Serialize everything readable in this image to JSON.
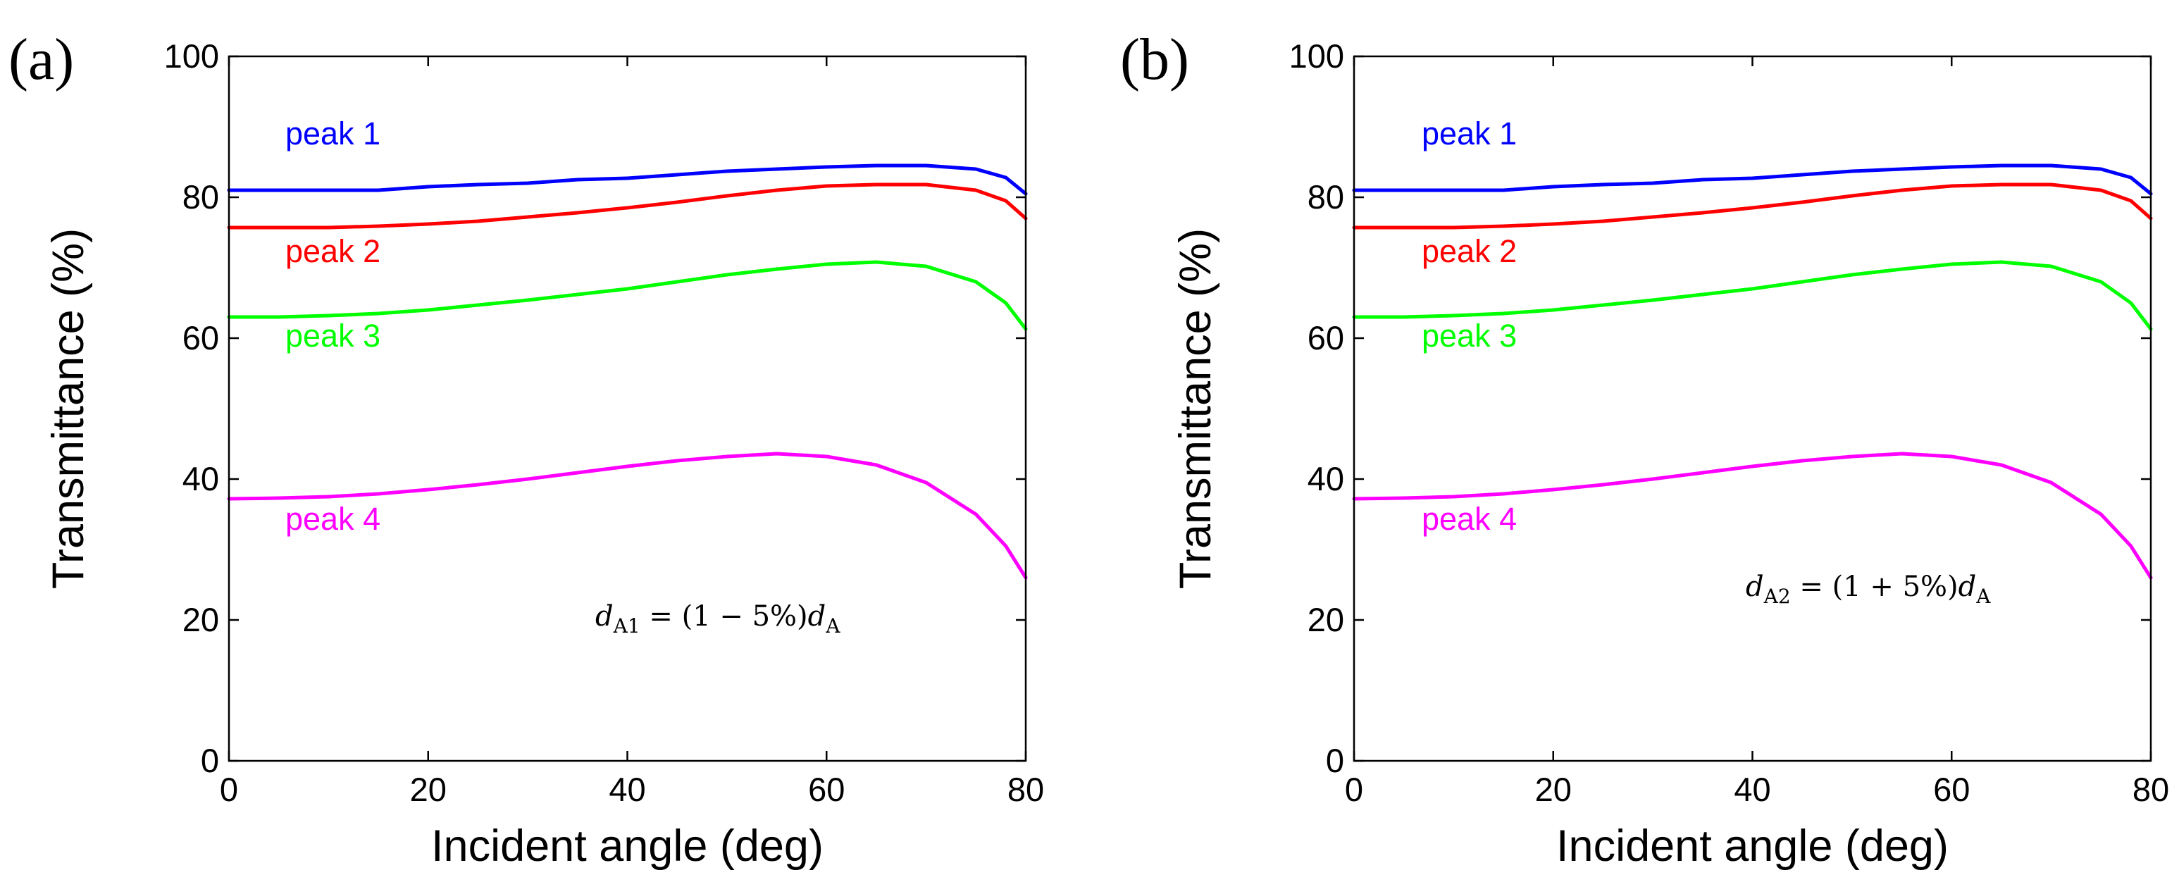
{
  "chart_data": [
    {
      "type": "line",
      "panel_label": "(a)",
      "xlabel": "Incident angle (deg)",
      "ylabel": "Transmittance (%)",
      "xlim": [
        0,
        80
      ],
      "ylim": [
        0,
        100
      ],
      "xticks": [
        0,
        20,
        40,
        60,
        80
      ],
      "yticks": [
        0,
        20,
        40,
        60,
        80,
        100
      ],
      "x": [
        0,
        5,
        10,
        15,
        20,
        25,
        30,
        35,
        40,
        45,
        50,
        55,
        60,
        65,
        70,
        75,
        78,
        80
      ],
      "series": [
        {
          "name": "peak 1",
          "color": "#0000ff",
          "values": [
            81,
            81,
            81,
            81,
            81.5,
            81.8,
            82,
            82.5,
            82.7,
            83.2,
            83.7,
            84,
            84.3,
            84.5,
            84.5,
            84,
            82.8,
            80.5
          ]
        },
        {
          "name": "peak 2",
          "color": "#ff0000",
          "values": [
            75.7,
            75.7,
            75.7,
            75.9,
            76.2,
            76.6,
            77.2,
            77.8,
            78.5,
            79.3,
            80.2,
            81,
            81.6,
            81.8,
            81.8,
            81,
            79.5,
            77
          ]
        },
        {
          "name": "peak 3",
          "color": "#00ff00",
          "values": [
            63,
            63,
            63.2,
            63.5,
            64,
            64.7,
            65.4,
            66.2,
            67,
            68,
            69,
            69.8,
            70.5,
            70.8,
            70.2,
            68,
            65,
            61.3
          ]
        },
        {
          "name": "peak 4",
          "color": "#ff00ff",
          "values": [
            37.2,
            37.3,
            37.5,
            37.9,
            38.5,
            39.2,
            40,
            40.9,
            41.8,
            42.6,
            43.2,
            43.6,
            43.2,
            42,
            39.5,
            35,
            30.5,
            26
          ]
        }
      ],
      "annotation": {
        "d": "d",
        "sub_left": "A1",
        "eq": " = (1 − 5%)",
        "d2": "d",
        "sub_right": "A"
      }
    },
    {
      "type": "line",
      "panel_label": "(b)",
      "xlabel": "Incident angle (deg)",
      "ylabel": "Transmittance (%)",
      "xlim": [
        0,
        80
      ],
      "ylim": [
        0,
        100
      ],
      "xticks": [
        0,
        20,
        40,
        60,
        80
      ],
      "yticks": [
        0,
        20,
        40,
        60,
        80,
        100
      ],
      "x": [
        0,
        5,
        10,
        15,
        20,
        25,
        30,
        35,
        40,
        45,
        50,
        55,
        60,
        65,
        70,
        75,
        78,
        80
      ],
      "series": [
        {
          "name": "peak 1",
          "color": "#0000ff",
          "values": [
            81,
            81,
            81,
            81,
            81.5,
            81.8,
            82,
            82.5,
            82.7,
            83.2,
            83.7,
            84,
            84.3,
            84.5,
            84.5,
            84,
            82.8,
            80.5
          ]
        },
        {
          "name": "peak 2",
          "color": "#ff0000",
          "values": [
            75.7,
            75.7,
            75.7,
            75.9,
            76.2,
            76.6,
            77.2,
            77.8,
            78.5,
            79.3,
            80.2,
            81,
            81.6,
            81.8,
            81.8,
            81,
            79.5,
            77
          ]
        },
        {
          "name": "peak 3",
          "color": "#00ff00",
          "values": [
            63,
            63,
            63.2,
            63.5,
            64,
            64.7,
            65.4,
            66.2,
            67,
            68,
            69,
            69.8,
            70.5,
            70.8,
            70.2,
            68,
            65,
            61.3
          ]
        },
        {
          "name": "peak 4",
          "color": "#ff00ff",
          "values": [
            37.2,
            37.3,
            37.5,
            37.9,
            38.5,
            39.2,
            40,
            40.9,
            41.8,
            42.6,
            43.2,
            43.6,
            43.2,
            42,
            39.5,
            35,
            30.5,
            26
          ]
        }
      ],
      "annotation": {
        "d": "d",
        "sub_left": "A2",
        "eq": " = (1 + 5%)",
        "d2": "d",
        "sub_right": "A"
      }
    }
  ]
}
